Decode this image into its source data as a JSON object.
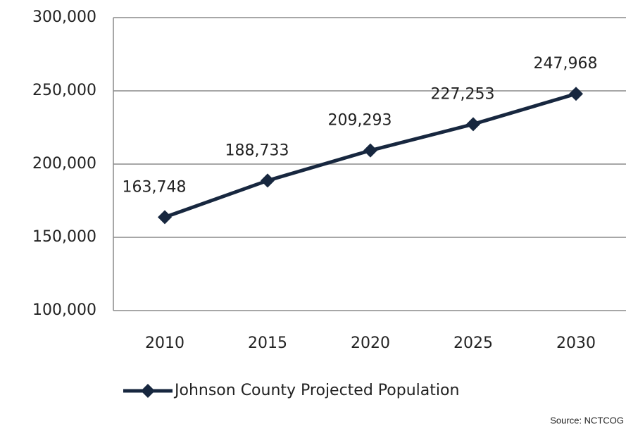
{
  "chart_data": {
    "type": "line",
    "categories": [
      "2010",
      "2015",
      "2020",
      "2025",
      "2030"
    ],
    "series": [
      {
        "name": "Johnson County Projected Population",
        "color": "#17273f",
        "values": [
          163748,
          188733,
          209293,
          227253,
          247968
        ],
        "value_labels": [
          "163,748",
          "188,733",
          "209,293",
          "227,253",
          "247,968"
        ]
      }
    ],
    "ylim": [
      100000,
      300000
    ],
    "yticks": [
      {
        "value": 100000,
        "label": "100,000"
      },
      {
        "value": 150000,
        "label": "150,000"
      },
      {
        "value": 200000,
        "label": "200,000"
      },
      {
        "value": 250000,
        "label": "250,000"
      },
      {
        "value": 300000,
        "label": "300,000"
      }
    ],
    "grid": true,
    "legend": "bottom",
    "source": "Source: NCTCOG"
  }
}
